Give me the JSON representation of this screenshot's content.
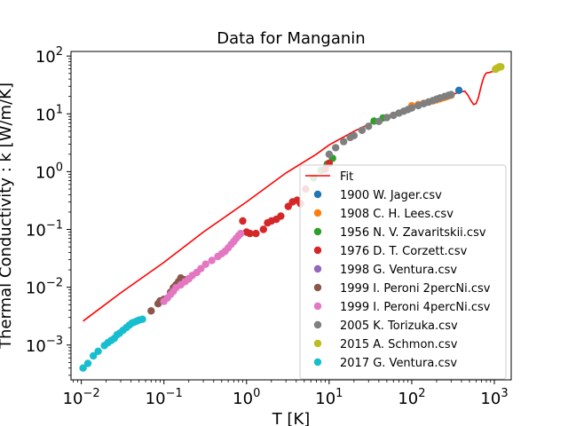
{
  "chart_data": {
    "type": "scatter",
    "title": "Data for Manganin",
    "xlabel": "T [K]",
    "ylabel": "Thermal Conductivity : k [W/m/K]",
    "xscale": "log",
    "yscale": "log",
    "xlim": [
      0.0075,
      1600
    ],
    "ylim": [
      0.00025,
      120
    ],
    "xticks": [
      {
        "value": 0.01,
        "base": "10",
        "exp": "−2"
      },
      {
        "value": 0.1,
        "base": "10",
        "exp": "−1"
      },
      {
        "value": 1,
        "base": "10",
        "exp": "0"
      },
      {
        "value": 10,
        "base": "10",
        "exp": "1"
      },
      {
        "value": 100,
        "base": "10",
        "exp": "2"
      },
      {
        "value": 1000,
        "base": "10",
        "exp": "3"
      }
    ],
    "yticks": [
      {
        "value": 0.001,
        "base": "10",
        "exp": "−3"
      },
      {
        "value": 0.01,
        "base": "10",
        "exp": "−2"
      },
      {
        "value": 0.1,
        "base": "10",
        "exp": "−1"
      },
      {
        "value": 1,
        "base": "10",
        "exp": "0"
      },
      {
        "value": 10,
        "base": "10",
        "exp": "1"
      },
      {
        "value": 100,
        "base": "10",
        "exp": "2"
      }
    ],
    "grid": false,
    "legend_position": "lower-right",
    "fit": {
      "name": "Fit",
      "color": "#ff0000",
      "points": [
        [
          0.0105,
          0.0026
        ],
        [
          0.03,
          0.008
        ],
        [
          0.1,
          0.027
        ],
        [
          0.3,
          0.09
        ],
        [
          1,
          0.3
        ],
        [
          3,
          0.95
        ],
        [
          7,
          2.0
        ],
        [
          10,
          2.9
        ],
        [
          20,
          5.0
        ],
        [
          40,
          8.0
        ],
        [
          70,
          11
        ],
        [
          100,
          13
        ],
        [
          200,
          18
        ],
        [
          300,
          21
        ],
        [
          380,
          24
        ],
        [
          440,
          24.5
        ],
        [
          480,
          21
        ],
        [
          520,
          17
        ],
        [
          560,
          14.5
        ],
        [
          600,
          15
        ],
        [
          640,
          19
        ],
        [
          680,
          27
        ],
        [
          720,
          37
        ],
        [
          760,
          46
        ],
        [
          800,
          51
        ],
        [
          870,
          52
        ],
        [
          950,
          54
        ],
        [
          1050,
          57
        ],
        [
          1200,
          66
        ]
      ]
    },
    "series": [
      {
        "name": "1900 W. Jager.csv",
        "color": "#1f77b4",
        "points": [
          [
            373,
            25.5
          ]
        ]
      },
      {
        "name": "1908 C. H. Lees.csv",
        "color": "#ff7f0e",
        "points": [
          [
            100,
            13.8
          ],
          [
            120,
            14.5
          ],
          [
            140,
            15.2
          ],
          [
            160,
            16
          ],
          [
            180,
            16.8
          ],
          [
            200,
            17.5
          ],
          [
            220,
            18.2
          ],
          [
            240,
            19
          ],
          [
            260,
            19.7
          ],
          [
            280,
            20.5
          ],
          [
            300,
            21
          ]
        ]
      },
      {
        "name": "1956 N. V. Zavaritskii.csv",
        "color": "#2ca02c",
        "points": [
          [
            6.5,
            0.78
          ],
          [
            8,
            1.05
          ],
          [
            9.5,
            1.35
          ],
          [
            11,
            1.7
          ],
          [
            35,
            7.5
          ],
          [
            45,
            8.5
          ]
        ]
      },
      {
        "name": "1976 D. T. Corzett.csv",
        "color": "#d62728",
        "points": [
          [
            0.9,
            0.14
          ],
          [
            1.0,
            0.09
          ],
          [
            1.1,
            0.085
          ],
          [
            1.3,
            0.085
          ],
          [
            1.6,
            0.1
          ],
          [
            1.8,
            0.13
          ],
          [
            2.0,
            0.14
          ],
          [
            2.3,
            0.15
          ],
          [
            2.6,
            0.17
          ],
          [
            3.2,
            0.25
          ],
          [
            3.6,
            0.3
          ],
          [
            4.1,
            0.32
          ],
          [
            4.5,
            0.28
          ],
          [
            5.2,
            0.5
          ],
          [
            9,
            1.1
          ],
          [
            10,
            1.4
          ]
        ]
      },
      {
        "name": "1998 G. Ventura.csv",
        "color": "#9467bd",
        "points": []
      },
      {
        "name": "1999 I. Peroni 2percNi.csv",
        "color": "#8c564b",
        "points": [
          [
            0.07,
            0.0039
          ],
          [
            0.085,
            0.0052
          ],
          [
            0.09,
            0.0058
          ],
          [
            0.1,
            0.0062
          ],
          [
            0.12,
            0.0082
          ],
          [
            0.13,
            0.0098
          ],
          [
            0.14,
            0.011
          ],
          [
            0.15,
            0.0125
          ],
          [
            0.16,
            0.0145
          ],
          [
            0.18,
            0.0135
          ],
          [
            0.2,
            0.014
          ]
        ]
      },
      {
        "name": "1999 I. Peroni 4percNi.csv",
        "color": "#e377c2",
        "points": [
          [
            0.1,
            0.0057
          ],
          [
            0.11,
            0.0065
          ],
          [
            0.12,
            0.0075
          ],
          [
            0.13,
            0.0085
          ],
          [
            0.14,
            0.0098
          ],
          [
            0.16,
            0.011
          ],
          [
            0.18,
            0.0125
          ],
          [
            0.2,
            0.014
          ],
          [
            0.22,
            0.016
          ],
          [
            0.25,
            0.018
          ],
          [
            0.28,
            0.021
          ],
          [
            0.32,
            0.025
          ],
          [
            0.38,
            0.029
          ],
          [
            0.45,
            0.034
          ],
          [
            0.5,
            0.038
          ],
          [
            0.55,
            0.042
          ],
          [
            0.6,
            0.048
          ],
          [
            0.65,
            0.055
          ],
          [
            0.7,
            0.062
          ],
          [
            0.75,
            0.07
          ],
          [
            0.8,
            0.078
          ],
          [
            0.85,
            0.085
          ]
        ]
      },
      {
        "name": "2005 K. Torizuka.csv",
        "color": "#7f7f7f",
        "points": [
          [
            10,
            2.0
          ],
          [
            12,
            2.6
          ],
          [
            15,
            3.3
          ],
          [
            18,
            3.9
          ],
          [
            20,
            4.2
          ],
          [
            25,
            5.2
          ],
          [
            30,
            6.1
          ],
          [
            40,
            7.4
          ],
          [
            50,
            8.6
          ],
          [
            60,
            9.4
          ],
          [
            70,
            10.3
          ],
          [
            80,
            11.1
          ],
          [
            90,
            11.9
          ],
          [
            100,
            12.6
          ],
          [
            120,
            13.9
          ],
          [
            140,
            15
          ],
          [
            160,
            16
          ],
          [
            180,
            17
          ],
          [
            200,
            18
          ],
          [
            220,
            18.9
          ],
          [
            250,
            20
          ],
          [
            280,
            21
          ],
          [
            300,
            21.5
          ]
        ]
      },
      {
        "name": "2015 A. Schmon.csv",
        "color": "#bcbd22",
        "points": [
          [
            1030,
            59
          ],
          [
            1060,
            61
          ],
          [
            1090,
            62
          ],
          [
            1120,
            63
          ],
          [
            1150,
            65
          ],
          [
            1200,
            65
          ]
        ]
      },
      {
        "name": "2017 G. Ventura.csv",
        "color": "#17becf",
        "points": [
          [
            0.0105,
            0.0004
          ],
          [
            0.012,
            0.00048
          ],
          [
            0.014,
            0.00065
          ],
          [
            0.016,
            0.00078
          ],
          [
            0.019,
            0.00098
          ],
          [
            0.021,
            0.0011
          ],
          [
            0.023,
            0.0012
          ],
          [
            0.025,
            0.0013
          ],
          [
            0.027,
            0.0015
          ],
          [
            0.029,
            0.0016
          ],
          [
            0.032,
            0.0018
          ],
          [
            0.035,
            0.002
          ],
          [
            0.038,
            0.0022
          ],
          [
            0.041,
            0.0024
          ],
          [
            0.044,
            0.0025
          ],
          [
            0.047,
            0.0026
          ],
          [
            0.05,
            0.0027
          ],
          [
            0.055,
            0.0028
          ]
        ]
      }
    ]
  }
}
